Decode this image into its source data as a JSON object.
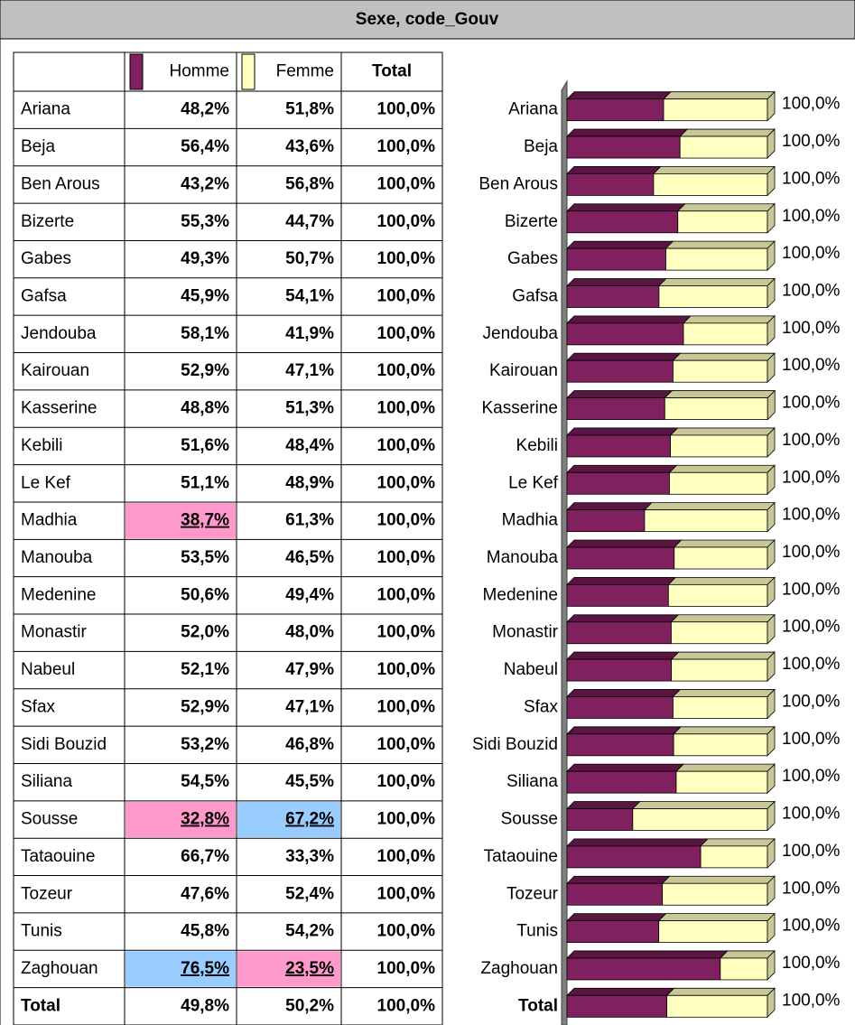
{
  "title": "Sexe, code_Gouv",
  "table": {
    "total_header": "Total",
    "rows": [
      [
        "48,2%",
        "51,8%",
        "100,0%"
      ],
      [
        "56,4%",
        "43,6%",
        "100,0%"
      ],
      [
        "43,2%",
        "56,8%",
        "100,0%"
      ],
      [
        "55,3%",
        "44,7%",
        "100,0%"
      ],
      [
        "49,3%",
        "50,7%",
        "100,0%"
      ],
      [
        "45,9%",
        "54,1%",
        "100,0%"
      ],
      [
        "58,1%",
        "41,9%",
        "100,0%"
      ],
      [
        "52,9%",
        "47,1%",
        "100,0%"
      ],
      [
        "48,8%",
        "51,3%",
        "100,0%"
      ],
      [
        "51,6%",
        "48,4%",
        "100,0%"
      ],
      [
        "51,1%",
        "48,9%",
        "100,0%"
      ],
      [
        "38,7%",
        "61,3%",
        "100,0%"
      ],
      [
        "53,5%",
        "46,5%",
        "100,0%"
      ],
      [
        "50,6%",
        "49,4%",
        "100,0%"
      ],
      [
        "52,0%",
        "48,0%",
        "100,0%"
      ],
      [
        "52,1%",
        "47,9%",
        "100,0%"
      ],
      [
        "52,9%",
        "47,1%",
        "100,0%"
      ],
      [
        "53,2%",
        "46,8%",
        "100,0%"
      ],
      [
        "54,5%",
        "45,5%",
        "100,0%"
      ],
      [
        "32,8%",
        "67,2%",
        "100,0%"
      ],
      [
        "66,7%",
        "33,3%",
        "100,0%"
      ],
      [
        "47,6%",
        "52,4%",
        "100,0%"
      ],
      [
        "45,8%",
        "54,2%",
        "100,0%"
      ],
      [
        "76,5%",
        "23,5%",
        "100,0%"
      ],
      [
        "49,8%",
        "50,2%",
        "100,0%"
      ]
    ],
    "highlights": [
      {
        "row": 11,
        "col": 0,
        "color": "#ff99cc"
      },
      {
        "row": 19,
        "col": 0,
        "color": "#ff99cc"
      },
      {
        "row": 19,
        "col": 1,
        "color": "#99ccff"
      },
      {
        "row": 23,
        "col": 0,
        "color": "#99ccff"
      },
      {
        "row": 23,
        "col": 1,
        "color": "#ff99cc"
      }
    ]
  },
  "chart_data": {
    "type": "bar",
    "orientation": "horizontal",
    "stacked": true,
    "categories": [
      "Ariana",
      "Beja",
      "Ben Arous",
      "Bizerte",
      "Gabes",
      "Gafsa",
      "Jendouba",
      "Kairouan",
      "Kasserine",
      "Kebili",
      "Le Kef",
      "Madhia",
      "Manouba",
      "Medenine",
      "Monastir",
      "Nabeul",
      "Sfax",
      "Sidi Bouzid",
      "Siliana",
      "Sousse",
      "Tataouine",
      "Tozeur",
      "Tunis",
      "Zaghouan",
      "Total"
    ],
    "series": [
      {
        "name": "Homme",
        "color": "#80205f",
        "values": [
          48.2,
          56.4,
          43.2,
          55.3,
          49.3,
          45.9,
          58.1,
          52.9,
          48.8,
          51.6,
          51.1,
          38.7,
          53.5,
          50.6,
          52.0,
          52.1,
          52.9,
          53.2,
          54.5,
          32.8,
          66.7,
          47.6,
          45.8,
          76.5,
          49.8
        ]
      },
      {
        "name": "Femme",
        "color": "#ffffc0",
        "values": [
          51.8,
          43.6,
          56.8,
          44.7,
          50.7,
          54.1,
          41.9,
          47.1,
          51.3,
          48.4,
          48.9,
          61.3,
          46.5,
          49.4,
          48.0,
          47.9,
          47.1,
          46.8,
          45.5,
          67.2,
          33.3,
          52.4,
          54.2,
          23.5,
          50.2
        ]
      }
    ],
    "value_labels": [
      "100,0%",
      "100,0%",
      "100,0%",
      "100,0%",
      "100,0%",
      "100,0%",
      "100,0%",
      "100,0%",
      "100,0%",
      "100,0%",
      "100,0%",
      "100,0%",
      "100,0%",
      "100,0%",
      "100,0%",
      "100,0%",
      "100,0%",
      "100,0%",
      "100,0%",
      "100,0%",
      "100,0%",
      "100,0%",
      "100,0%",
      "100,0%",
      "100,0%"
    ],
    "xlim": [
      0,
      100
    ]
  }
}
